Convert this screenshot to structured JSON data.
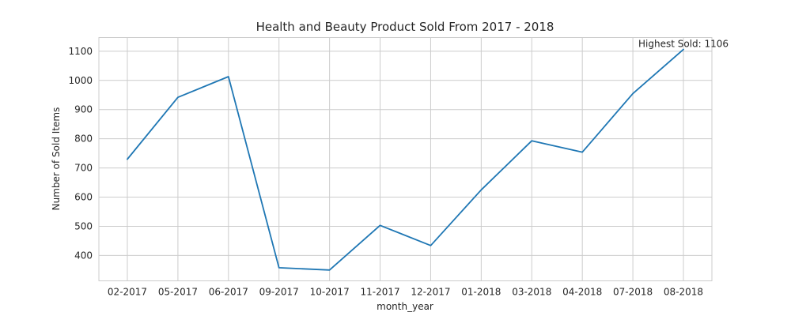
{
  "chart_data": {
    "type": "line",
    "title": "Health and Beauty Product Sold From 2017 - 2018",
    "xlabel": "month_year",
    "ylabel": "Number of Sold Items",
    "categories": [
      "02-2017",
      "05-2017",
      "06-2017",
      "09-2017",
      "10-2017",
      "11-2017",
      "12-2017",
      "01-2018",
      "03-2018",
      "04-2018",
      "07-2018",
      "08-2018"
    ],
    "series": [
      {
        "values": [
          730,
          942,
          1013,
          358,
          350,
          503,
          434,
          625,
          793,
          754,
          955,
          1106
        ],
        "color": "#1f77b4"
      }
    ],
    "ylim": [
      313,
      1147
    ],
    "yticks": [
      400,
      500,
      600,
      700,
      800,
      900,
      1000,
      1100
    ],
    "grid": true,
    "annotation": {
      "text": "Highest Sold: 1106",
      "x": "08-2018",
      "y": 1106
    }
  }
}
